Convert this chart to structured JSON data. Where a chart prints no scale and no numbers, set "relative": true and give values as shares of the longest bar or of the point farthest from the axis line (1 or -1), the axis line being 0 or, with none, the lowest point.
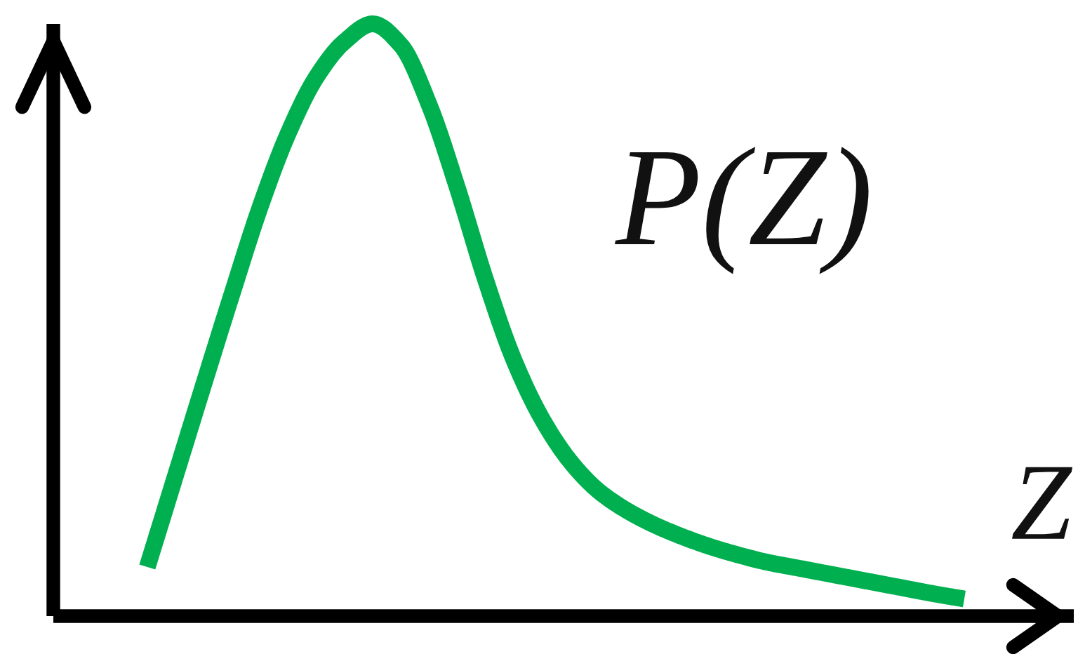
{
  "chart_data": {
    "type": "line",
    "relative": true,
    "xlabel": "Z",
    "categories": [
      null,
      null,
      null,
      null,
      null,
      null,
      null,
      null,
      null,
      null,
      null,
      null,
      null,
      null,
      null,
      null,
      null,
      null,
      null,
      null,
      null,
      null,
      null,
      null,
      null,
      null,
      null,
      null,
      null,
      null
    ],
    "series": [
      {
        "name": "P(Z)",
        "color": "#00b050",
        "values": [
          0.083,
          0.237,
          0.391,
          0.543,
          0.69,
          0.815,
          0.91,
          0.97,
          1.0,
          0.964,
          0.864,
          0.724,
          0.569,
          0.434,
          0.334,
          0.262,
          0.212,
          0.179,
          0.154,
          0.134,
          0.117,
          0.103,
          0.091,
          0.082,
          0.073,
          0.064,
          0.055,
          0.046,
          0.037,
          0.029
        ]
      }
    ],
    "grid": false,
    "legend": false,
    "marker": "none",
    "line_style": "solid"
  }
}
